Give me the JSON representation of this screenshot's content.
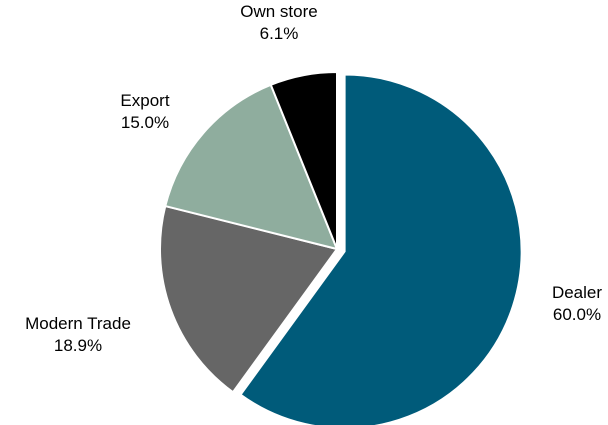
{
  "chart_data": {
    "type": "pie",
    "title": "",
    "start_angle_deg": 0,
    "direction": "clockwise",
    "slices": [
      {
        "label": "Dealer",
        "value": 60.0,
        "value_label": "60.0%",
        "color": "#005b7a",
        "exploded": true
      },
      {
        "label": "Modern Trade",
        "value": 18.9,
        "value_label": "18.9%",
        "color": "#666666",
        "exploded": false
      },
      {
        "label": "Export",
        "value": 15.0,
        "value_label": "15.0%",
        "color": "#8fad9e",
        "exploded": false
      },
      {
        "label": "Own store",
        "value": 6.1,
        "value_label": "6.1%",
        "color": "#000000",
        "exploded": false
      }
    ]
  }
}
